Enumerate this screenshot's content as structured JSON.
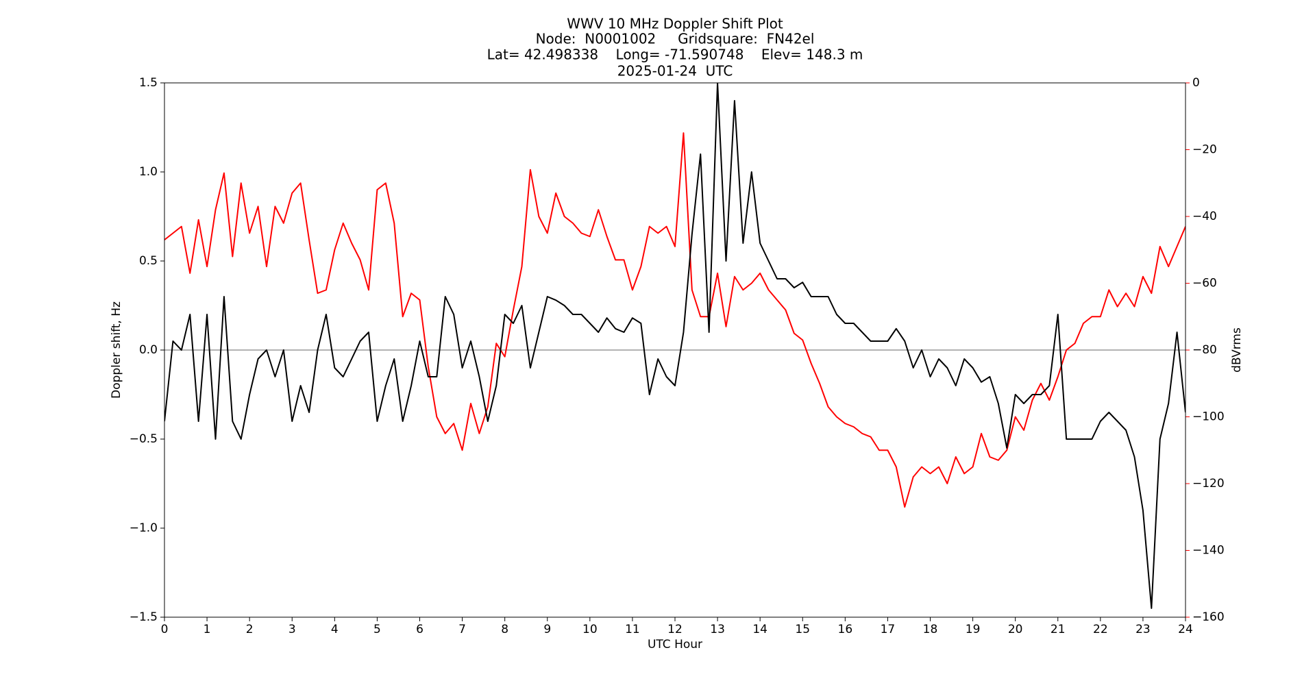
{
  "chart_data": {
    "type": "line",
    "title": [
      "WWV 10 MHz Doppler Shift Plot",
      "Node:  N0001002     Gridsquare:  FN42el",
      "Lat= 42.498338    Long= -71.590748    Elev= 148.3 m",
      "2025-01-24  UTC"
    ],
    "xlabel": "UTC Hour",
    "ylabel": "Doppler shift, Hz",
    "y2label": "dBVrms",
    "x": [
      0,
      0.2,
      0.4,
      0.6,
      0.8,
      1,
      1.2,
      1.4,
      1.6,
      1.8,
      2,
      2.2,
      2.4,
      2.6,
      2.8,
      3,
      3.2,
      3.4,
      3.6,
      3.8,
      4,
      4.2,
      4.4,
      4.6,
      4.8,
      5,
      5.2,
      5.4,
      5.6,
      5.8,
      6,
      6.2,
      6.4,
      6.6,
      6.8,
      7,
      7.2,
      7.4,
      7.6,
      7.8,
      8,
      8.2,
      8.4,
      8.6,
      8.8,
      9,
      9.2,
      9.4,
      9.6,
      9.8,
      10,
      10.2,
      10.4,
      10.6,
      10.8,
      11,
      11.2,
      11.4,
      11.6,
      11.8,
      12,
      12.2,
      12.4,
      12.6,
      12.8,
      13,
      13.2,
      13.4,
      13.6,
      13.8,
      14,
      14.2,
      14.4,
      14.6,
      14.8,
      15,
      15.2,
      15.4,
      15.6,
      15.8,
      16,
      16.2,
      16.4,
      16.6,
      16.8,
      17,
      17.2,
      17.4,
      17.6,
      17.8,
      18,
      18.2,
      18.4,
      18.6,
      18.8,
      19,
      19.2,
      19.4,
      19.6,
      19.8,
      20,
      20.2,
      20.4,
      20.6,
      20.8,
      21,
      21.2,
      21.4,
      21.6,
      21.8,
      22,
      22.2,
      22.4,
      22.6,
      22.8,
      23,
      23.2,
      23.4,
      23.6,
      23.8,
      24
    ],
    "series": [
      {
        "color": "#000000",
        "values": [
          -0.4,
          0.05,
          0.0,
          0.2,
          -0.4,
          0.2,
          -0.5,
          0.3,
          -0.4,
          -0.5,
          -0.25,
          -0.05,
          0.0,
          -0.15,
          0.0,
          -0.4,
          -0.2,
          -0.35,
          0.0,
          0.2,
          -0.1,
          -0.15,
          -0.05,
          0.05,
          0.1,
          -0.4,
          -0.2,
          -0.05,
          -0.4,
          -0.2,
          0.05,
          -0.15,
          -0.15,
          0.3,
          0.2,
          -0.1,
          0.05,
          -0.15,
          -0.4,
          -0.2,
          0.2,
          0.15,
          0.25,
          -0.1,
          0.1,
          0.3,
          0.28,
          0.25,
          0.2,
          0.2,
          0.15,
          0.1,
          0.18,
          0.12,
          0.1,
          0.18,
          0.15,
          -0.25,
          -0.05,
          -0.15,
          -0.2,
          0.1,
          0.65,
          1.1,
          0.1,
          1.5,
          0.5,
          1.4,
          0.6,
          1.0,
          0.6,
          0.5,
          0.4,
          0.4,
          0.35,
          0.38,
          0.3,
          0.3,
          0.3,
          0.2,
          0.15,
          0.15,
          0.1,
          0.05,
          0.05,
          0.05,
          0.12,
          0.05,
          -0.1,
          0.0,
          -0.15,
          -0.05,
          -0.1,
          -0.2,
          -0.05,
          -0.1,
          -0.18,
          -0.15,
          -0.3,
          -0.55,
          -0.25,
          -0.3,
          -0.25,
          -0.25,
          -0.2,
          0.2,
          -0.5,
          -0.5,
          -0.5,
          -0.5,
          -0.4,
          -0.35,
          -0.4,
          -0.45,
          -0.6,
          -0.9,
          -1.45,
          -0.5,
          -0.3,
          0.1,
          -0.35
        ]
      },
      {
        "color": "#ff0000",
        "axis": "y2",
        "values": [
          -47,
          -45,
          -43,
          -57,
          -41,
          -55,
          -38,
          -27,
          -52,
          -30,
          -45,
          -37,
          -55,
          -37,
          -42,
          -33,
          -30,
          -47,
          -63,
          -62,
          -50,
          -42,
          -48,
          -53,
          -62,
          -32,
          -30,
          -42,
          -70,
          -63,
          -65,
          -85,
          -100,
          -105,
          -102,
          -110,
          -96,
          -105,
          -97,
          -78,
          -82,
          -68,
          -55,
          -26,
          -40,
          -45,
          -33,
          -40,
          -42,
          -45,
          -46,
          -38,
          -46,
          -53,
          -53,
          -62,
          -55,
          -43,
          -45,
          -43,
          -49,
          -15,
          -62,
          -70,
          -70,
          -57,
          -73,
          -58,
          -62,
          -60,
          -57,
          -62,
          -65,
          -68,
          -75,
          -77,
          -84,
          -90,
          -97,
          -100,
          -102,
          -103,
          -105,
          -106,
          -110,
          -110,
          -115,
          -127,
          -118,
          -115,
          -117,
          -115,
          -120,
          -112,
          -117,
          -115,
          -105,
          -112,
          -113,
          -110,
          -100,
          -104,
          -95,
          -90,
          -95,
          -88,
          -80,
          -78,
          -72,
          -70,
          -70,
          -62,
          -67,
          -63,
          -67,
          -58,
          -63,
          -49,
          -55,
          -49,
          -43
        ]
      }
    ],
    "xlim": [
      0,
      24
    ],
    "xticks": [
      0,
      1,
      2,
      3,
      4,
      5,
      6,
      7,
      8,
      9,
      10,
      11,
      12,
      13,
      14,
      15,
      16,
      17,
      18,
      19,
      20,
      21,
      22,
      23,
      24
    ],
    "ylim": [
      -1.5,
      1.5
    ],
    "yticks": [
      {
        "value": -1.5,
        "label": "−1.5"
      },
      {
        "value": -1.0,
        "label": "−1.0"
      },
      {
        "value": -0.5,
        "label": "−0.5"
      },
      {
        "value": 0,
        "label": "0.0"
      },
      0.5,
      {
        "value": 1.0,
        "label": "1.0"
      },
      1.5
    ],
    "y2lim": [
      -160,
      0
    ],
    "y2ticks": [
      {
        "value": -160,
        "label": "−160"
      },
      {
        "value": -140,
        "label": "−140"
      },
      {
        "value": -120,
        "label": "−120"
      },
      {
        "value": -100,
        "label": "−100"
      },
      {
        "value": -80,
        "label": "−80"
      },
      {
        "value": -60,
        "label": "−60"
      },
      {
        "value": -40,
        "label": "−40"
      },
      {
        "value": -20,
        "label": "−20"
      },
      0
    ],
    "y2color": "#ff0000",
    "hline": 0
  }
}
